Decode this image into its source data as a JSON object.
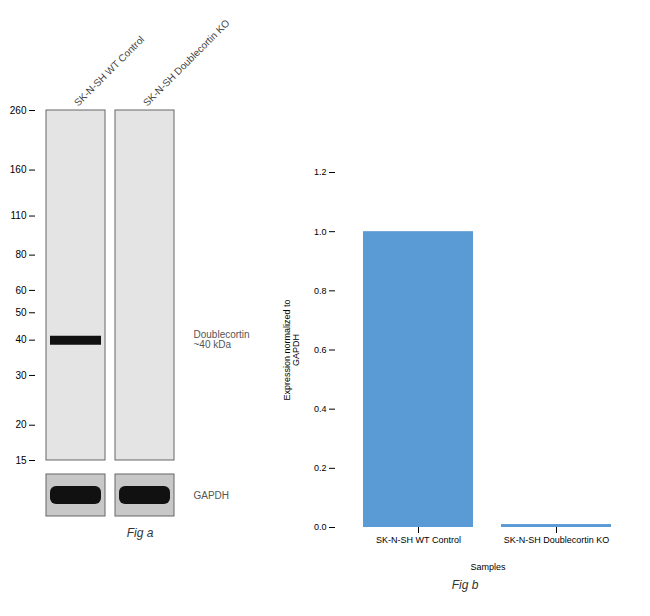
{
  "chart_data": [
    {
      "type": "blot",
      "title": "Fig a",
      "categories": [
        "SK-N-SH WT Control",
        "SK-N-SH Doublecortin KO"
      ],
      "values": [
        40,
        null
      ],
      "log": "y",
      "ylim": [
        15,
        260
      ],
      "yticks": [
        260,
        160,
        110,
        80,
        60,
        50,
        40,
        30,
        20,
        15
      ],
      "annotations": [
        "Doublecortin\n~40 kDa",
        "GAPDH"
      ]
    },
    {
      "type": "bar",
      "title": "Fig b",
      "categories": [
        "SK-N-SH WT Control",
        "SK-N-SH Doublecortin KO"
      ],
      "values": [
        1.0,
        0.01
      ],
      "color": "#5b9bd5",
      "xlabel": "Samples",
      "ylabel": "Expression normalized to\nGAPDH",
      "ylim": [
        0,
        1.2
      ],
      "yticks": [
        {
          "value": 0,
          "label": "0.0"
        },
        0.2,
        0.4,
        0.6,
        0.8,
        {
          "value": 1.0,
          "label": "1.0"
        },
        1.2
      ]
    }
  ]
}
